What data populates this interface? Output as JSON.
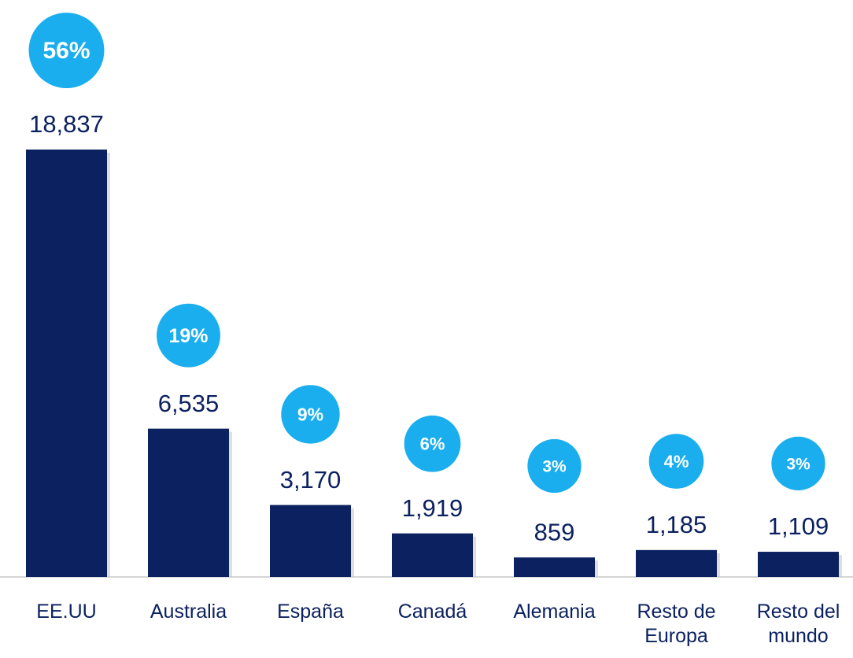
{
  "chart_data": {
    "type": "bar",
    "categories": [
      "EE.UU",
      "Australia",
      "España",
      "Canadá",
      "Alemania",
      "Resto de Europa",
      "Resto del mundo"
    ],
    "values": [
      18837,
      6535,
      3170,
      1919,
      859,
      1185,
      1109
    ],
    "value_labels": [
      "18,837",
      "6,535",
      "3,170",
      "1,919",
      "859",
      "1,185",
      "1,109"
    ],
    "color": "#0c2160",
    "percent": {
      "values": [
        56,
        19,
        9,
        6,
        3,
        4,
        3
      ],
      "value_labels": [
        "56%",
        "19%",
        "9%",
        "6%",
        "3%",
        "4%",
        "3%"
      ],
      "color": "#1aaeee"
    }
  }
}
